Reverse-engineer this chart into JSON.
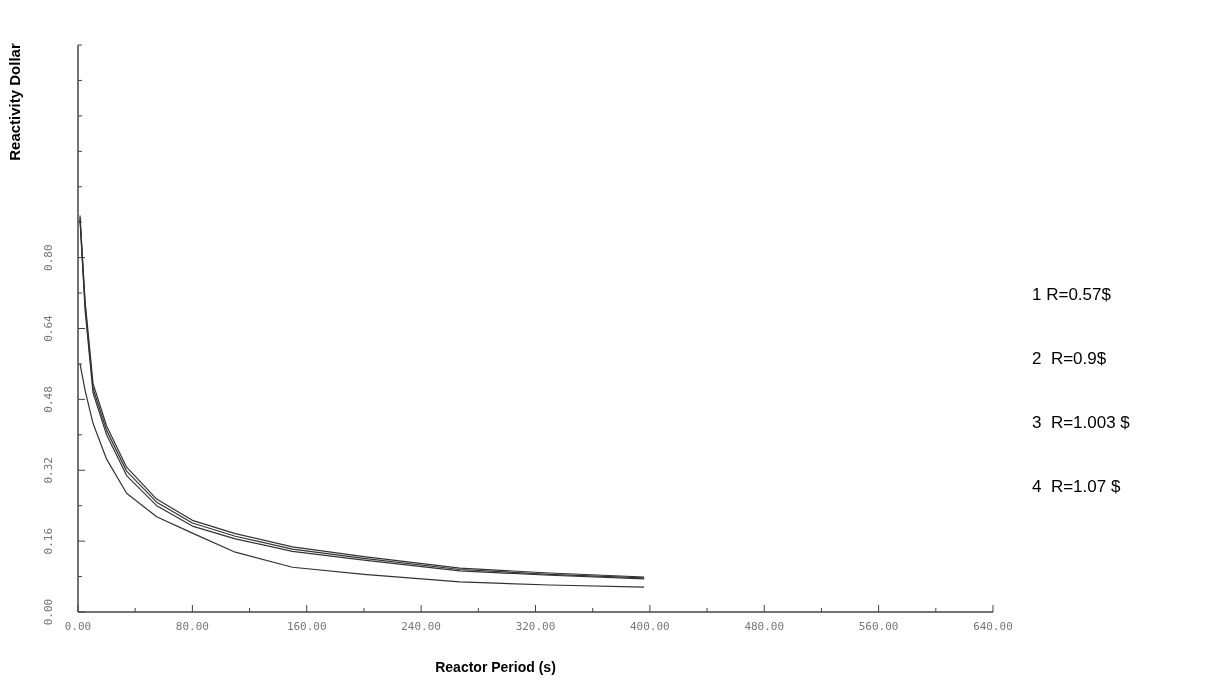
{
  "chart_data": {
    "type": "line",
    "xlabel": "Reactor Period (s)",
    "ylabel": "Reactivity Dollar",
    "x": [
      1.4,
      5,
      10.5,
      20,
      34,
      55,
      80,
      110,
      150,
      200,
      267,
      330,
      396
    ],
    "series": [
      {
        "color": "#333333",
        "values": [
          0.895,
          0.7,
          0.516,
          0.42,
          0.327,
          0.255,
          0.207,
          0.177,
          0.147,
          0.125,
          0.099,
          0.088,
          0.079
        ]
      },
      {
        "color": "#333333",
        "values": [
          0.89,
          0.69,
          0.505,
          0.41,
          0.318,
          0.248,
          0.201,
          0.171,
          0.142,
          0.121,
          0.096,
          0.085,
          0.077
        ]
      },
      {
        "color": "#333333",
        "values": [
          0.885,
          0.68,
          0.495,
          0.4,
          0.308,
          0.24,
          0.194,
          0.165,
          0.137,
          0.117,
          0.093,
          0.083,
          0.075
        ]
      },
      {
        "color": "#333333",
        "values": [
          0.56,
          0.5,
          0.426,
          0.345,
          0.268,
          0.215,
          0.178,
          0.135,
          0.101,
          0.085,
          0.068,
          0.061,
          0.056
        ]
      }
    ],
    "xlim": [
      0,
      640
    ],
    "xticks": [
      {
        "value": 0,
        "label": "0.00"
      },
      {
        "value": 40,
        "label": null
      },
      {
        "value": 80,
        "label": "80.00"
      },
      {
        "value": 120,
        "label": null
      },
      {
        "value": 160,
        "label": "160.00"
      },
      {
        "value": 200,
        "label": null
      },
      {
        "value": 240,
        "label": "240.00"
      },
      {
        "value": 280,
        "label": null
      },
      {
        "value": 320,
        "label": "320.00"
      },
      {
        "value": 360,
        "label": null
      },
      {
        "value": 400,
        "label": "400.00"
      },
      {
        "value": 440,
        "label": null
      },
      {
        "value": 480,
        "label": "480.00"
      },
      {
        "value": 520,
        "label": null
      },
      {
        "value": 560,
        "label": "560.00"
      },
      {
        "value": 600,
        "label": null
      },
      {
        "value": 640,
        "label": "640.00"
      }
    ],
    "ylim": [
      0,
      1.28
    ],
    "yticks": [
      {
        "value": 0,
        "label": "0.00"
      },
      {
        "value": 0.08,
        "label": null
      },
      {
        "value": 0.16,
        "label": "0.16"
      },
      {
        "value": 0.24,
        "label": null
      },
      {
        "value": 0.32,
        "label": "0.32"
      },
      {
        "value": 0.4,
        "label": null
      },
      {
        "value": 0.48,
        "label": "0.48"
      },
      {
        "value": 0.56,
        "label": null
      },
      {
        "value": 0.64,
        "label": "0.64"
      },
      {
        "value": 0.72,
        "label": null
      },
      {
        "value": 0.8,
        "label": "0.80"
      },
      {
        "value": 0.88,
        "label": null
      },
      {
        "value": 0.96,
        "label": null
      },
      {
        "value": 1.04,
        "label": null
      },
      {
        "value": 1.12,
        "label": null
      },
      {
        "value": 1.2,
        "label": null
      },
      {
        "value": 1.28,
        "label": null
      }
    ],
    "annotations": [
      "1 R=0.57$",
      "2  R=0.9$",
      "3  R=1.003 $",
      "4  R=1.07 $"
    ],
    "marker": "none",
    "line_style": "solid",
    "grid": false
  }
}
